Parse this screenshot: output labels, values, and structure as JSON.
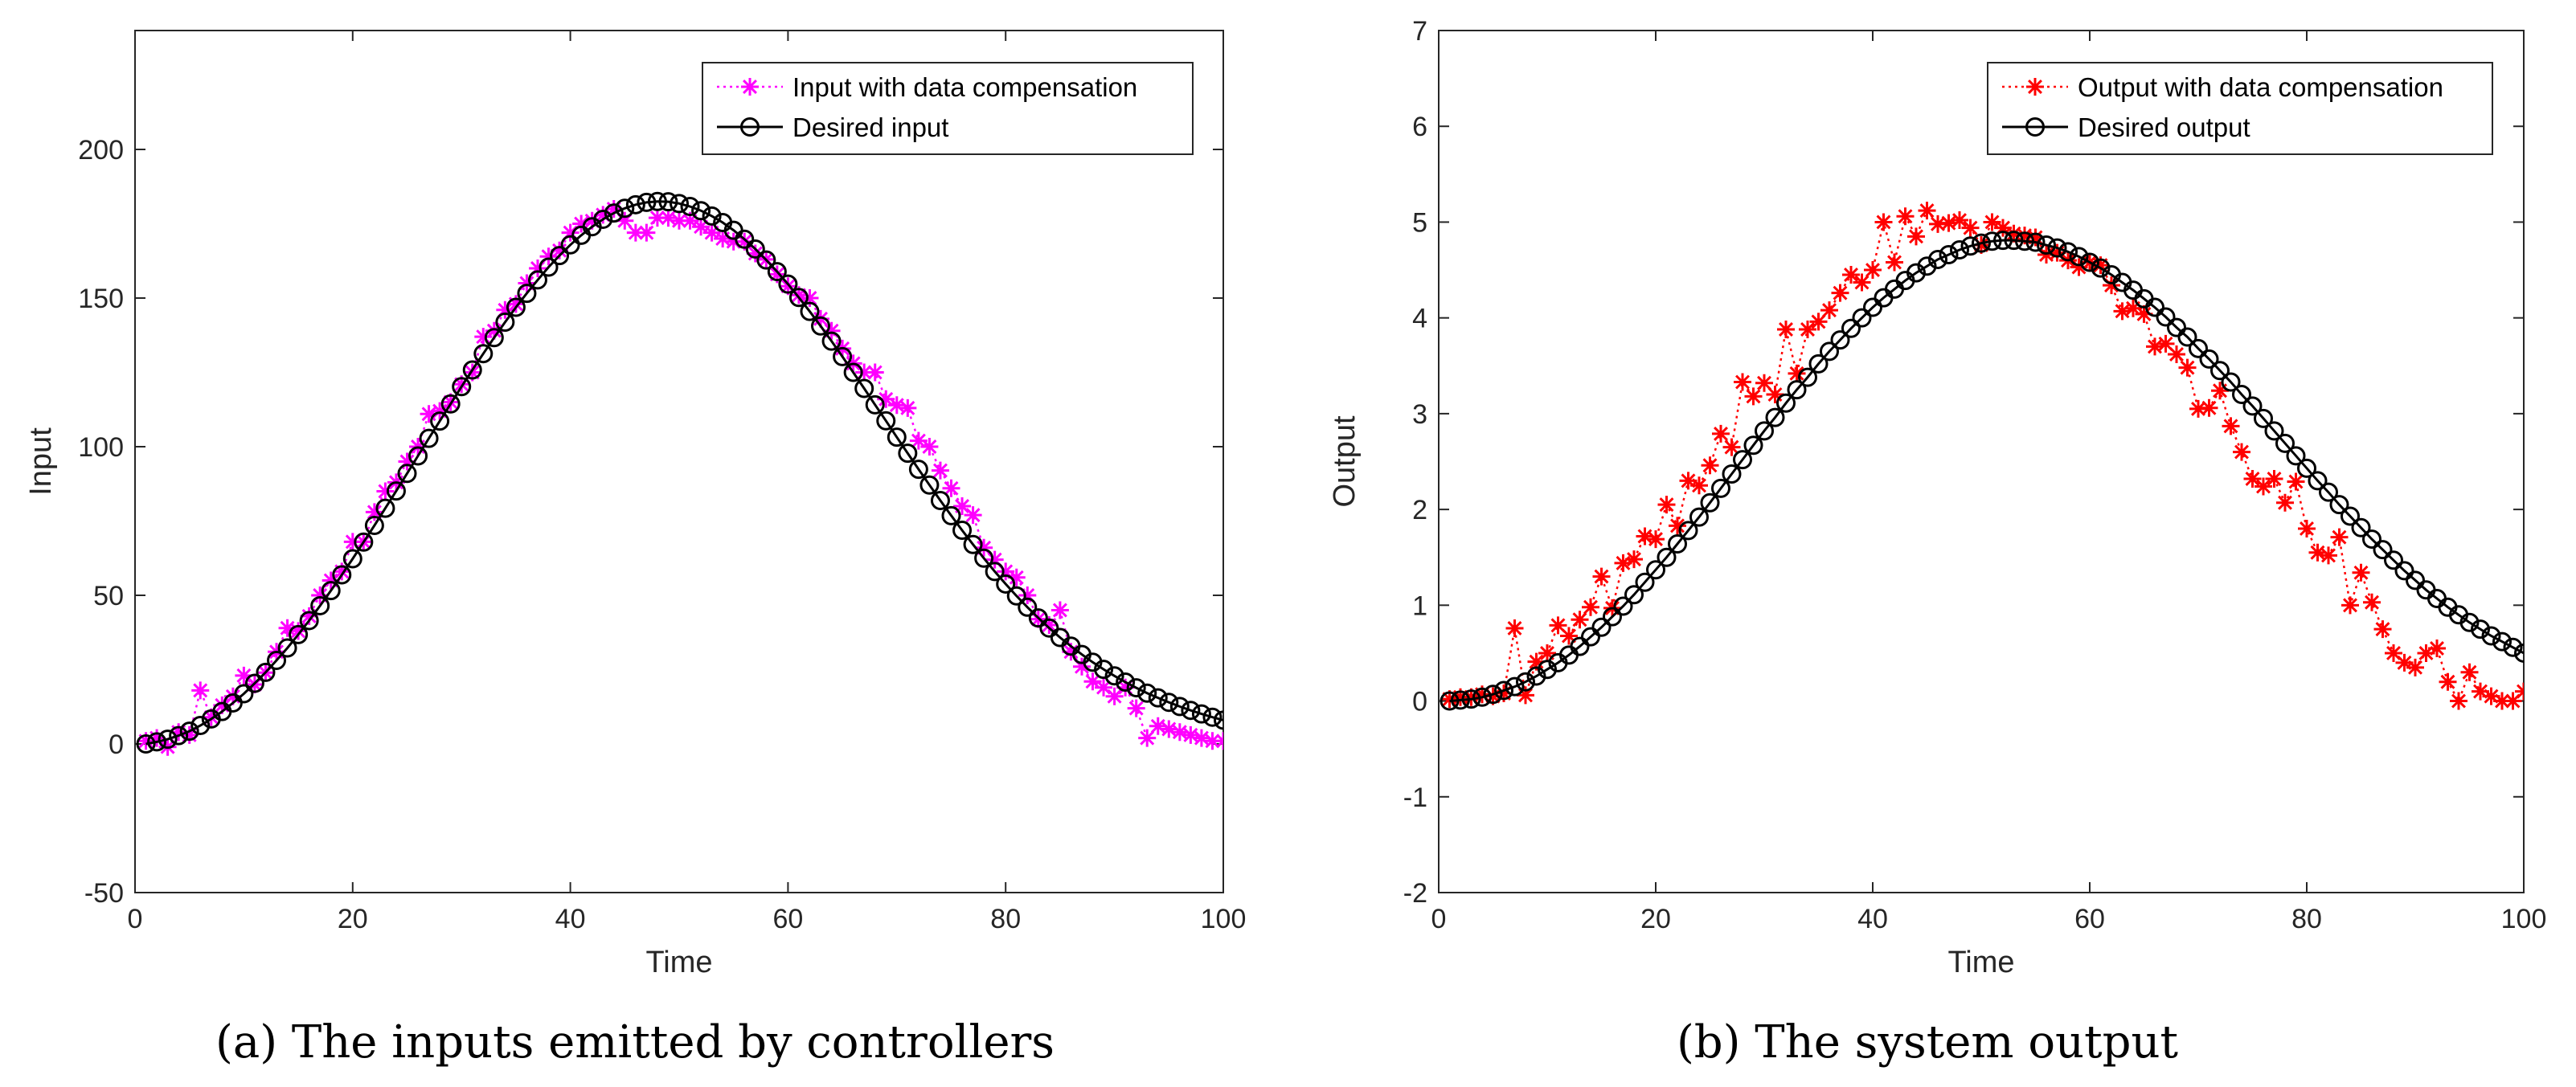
{
  "chart_data": [
    {
      "type": "line",
      "caption": "(a) The inputs emitted by controllers",
      "xlabel": "Time",
      "ylabel": "Input",
      "xlim": [
        0,
        100
      ],
      "ylim": [
        -50,
        240
      ],
      "xticks": [
        0,
        20,
        40,
        60,
        80,
        100
      ],
      "yticks": [
        -50,
        0,
        50,
        100,
        150,
        200
      ],
      "grid": false,
      "legend_position": "top-right",
      "series": [
        {
          "name": "Input with data compensation",
          "color": "#ff00ff",
          "marker": "asterisk",
          "line": "dotted",
          "x": [
            1,
            2,
            3,
            4,
            5,
            6,
            7,
            8,
            9,
            10,
            11,
            12,
            13,
            14,
            15,
            16,
            17,
            18,
            19,
            20,
            21,
            22,
            23,
            24,
            25,
            26,
            27,
            28,
            29,
            30,
            31,
            32,
            33,
            34,
            35,
            36,
            37,
            38,
            39,
            40,
            41,
            42,
            43,
            44,
            45,
            46,
            47,
            48,
            49,
            50,
            51,
            52,
            53,
            54,
            55,
            56,
            57,
            58,
            59,
            60,
            61,
            62,
            63,
            64,
            65,
            66,
            67,
            68,
            69,
            70,
            71,
            72,
            73,
            74,
            75,
            76,
            77,
            78,
            79,
            80,
            81,
            82,
            83,
            84,
            85,
            86,
            87,
            88,
            89,
            90,
            91,
            92,
            93,
            94,
            95,
            96,
            97,
            98,
            99,
            100
          ],
          "values": [
            1,
            2,
            -1,
            4,
            3,
            18,
            9,
            13,
            16,
            23,
            20,
            24,
            31,
            39,
            38,
            43,
            50,
            55,
            58,
            68,
            68,
            78,
            85,
            88,
            95,
            100,
            111,
            112,
            115,
            121,
            125,
            137,
            139,
            146,
            148,
            155,
            160,
            164,
            166,
            172,
            175,
            176,
            178,
            180,
            176,
            172,
            172,
            177,
            177,
            176,
            176,
            174,
            172,
            170,
            169,
            169,
            165,
            163,
            158,
            154,
            151,
            150,
            143,
            139,
            133,
            128,
            125,
            125,
            116,
            114,
            113,
            102,
            100,
            92,
            86,
            80,
            77,
            66,
            62,
            58,
            56,
            50,
            42,
            40,
            45,
            31,
            26,
            21,
            19,
            16,
            19,
            12,
            2,
            6,
            5,
            4,
            3,
            2,
            1,
            1
          ]
        },
        {
          "name": "Desired input",
          "color": "#000000",
          "marker": "circle",
          "line": "solid",
          "x": [
            1,
            2,
            3,
            4,
            5,
            6,
            7,
            8,
            9,
            10,
            11,
            12,
            13,
            14,
            15,
            16,
            17,
            18,
            19,
            20,
            21,
            22,
            23,
            24,
            25,
            26,
            27,
            28,
            29,
            30,
            31,
            32,
            33,
            34,
            35,
            36,
            37,
            38,
            39,
            40,
            41,
            42,
            43,
            44,
            45,
            46,
            47,
            48,
            49,
            50,
            51,
            52,
            53,
            54,
            55,
            56,
            57,
            58,
            59,
            60,
            61,
            62,
            63,
            64,
            65,
            66,
            67,
            68,
            69,
            70,
            71,
            72,
            73,
            74,
            75,
            76,
            77,
            78,
            79,
            80,
            81,
            82,
            83,
            84,
            85,
            86,
            87,
            88,
            89,
            90,
            91,
            92,
            93,
            94,
            95,
            96,
            97,
            98,
            99,
            100
          ],
          "values": [
            0.0,
            0.7,
            1.6,
            2.8,
            4.3,
            6.2,
            8.4,
            10.9,
            13.8,
            16.9,
            20.4,
            24.1,
            28.1,
            32.3,
            36.8,
            41.5,
            46.5,
            51.6,
            56.9,
            62.3,
            67.9,
            73.5,
            79.3,
            85.1,
            91.0,
            96.9,
            102.8,
            108.6,
            114.4,
            120.2,
            125.8,
            131.3,
            136.7,
            141.9,
            146.9,
            151.6,
            156.1,
            160.4,
            164.3,
            167.9,
            171.1,
            174.0,
            176.5,
            178.6,
            180.2,
            181.4,
            182.2,
            182.5,
            182.4,
            181.8,
            180.8,
            179.4,
            177.6,
            175.4,
            172.8,
            169.8,
            166.5,
            162.8,
            158.9,
            154.7,
            150.2,
            145.5,
            140.6,
            135.5,
            130.3,
            125.0,
            119.6,
            114.1,
            108.7,
            103.2,
            97.8,
            92.4,
            87.1,
            81.9,
            76.8,
            71.9,
            67.1,
            62.5,
            58.0,
            53.8,
            49.8,
            46.0,
            42.4,
            39.0,
            35.8,
            32.9,
            30.1,
            27.5,
            25.1,
            22.9,
            20.8,
            18.9,
            17.1,
            15.5,
            14.0,
            12.6,
            11.3,
            10.1,
            9.0,
            8.0
          ]
        }
      ]
    },
    {
      "type": "line",
      "caption": "(b) The system output",
      "xlabel": "Time",
      "ylabel": "Output",
      "xlim": [
        0,
        100
      ],
      "ylim": [
        -2,
        7
      ],
      "xticks": [
        0,
        20,
        40,
        60,
        80,
        100
      ],
      "yticks": [
        -2,
        -1,
        0,
        1,
        2,
        3,
        4,
        5,
        6,
        7
      ],
      "grid": false,
      "legend_position": "top-right",
      "series": [
        {
          "name": "Output with data compensation",
          "color": "#ff0000",
          "marker": "asterisk",
          "line": "dotted",
          "x": [
            1,
            2,
            3,
            4,
            5,
            6,
            7,
            8,
            9,
            10,
            11,
            12,
            13,
            14,
            15,
            16,
            17,
            18,
            19,
            20,
            21,
            22,
            23,
            24,
            25,
            26,
            27,
            28,
            29,
            30,
            31,
            32,
            33,
            34,
            35,
            36,
            37,
            38,
            39,
            40,
            41,
            42,
            43,
            44,
            45,
            46,
            47,
            48,
            49,
            50,
            51,
            52,
            53,
            54,
            55,
            56,
            57,
            58,
            59,
            60,
            61,
            62,
            63,
            64,
            65,
            66,
            67,
            68,
            69,
            70,
            71,
            72,
            73,
            74,
            75,
            76,
            77,
            78,
            79,
            80,
            81,
            82,
            83,
            84,
            85,
            86,
            87,
            88,
            89,
            90,
            91,
            92,
            93,
            94,
            95,
            96,
            97,
            98,
            99,
            100
          ],
          "values": [
            0.02,
            0.04,
            0.04,
            0.07,
            0.05,
            0.08,
            0.76,
            0.06,
            0.41,
            0.5,
            0.79,
            0.68,
            0.85,
            0.98,
            1.3,
            0.97,
            1.44,
            1.48,
            1.72,
            1.69,
            2.05,
            1.83,
            2.3,
            2.25,
            2.46,
            2.79,
            2.65,
            3.33,
            3.18,
            3.32,
            3.2,
            3.88,
            3.42,
            3.88,
            3.96,
            4.08,
            4.26,
            4.45,
            4.37,
            4.5,
            5.0,
            4.58,
            5.06,
            4.85,
            5.12,
            4.98,
            4.99,
            5.02,
            4.94,
            4.76,
            5.0,
            4.94,
            4.88,
            4.86,
            4.84,
            4.66,
            4.68,
            4.6,
            4.53,
            4.58,
            4.55,
            4.34,
            4.07,
            4.1,
            4.04,
            3.7,
            3.73,
            3.62,
            3.48,
            3.05,
            3.06,
            3.24,
            2.87,
            2.6,
            2.32,
            2.24,
            2.32,
            2.07,
            2.29,
            1.8,
            1.55,
            1.52,
            1.71,
            1.0,
            1.34,
            1.03,
            0.75,
            0.5,
            0.4,
            0.35,
            0.5,
            0.55,
            0.2,
            0.0,
            0.3,
            0.1,
            0.05,
            0.0,
            0.0,
            0.1
          ]
        },
        {
          "name": "Desired output",
          "color": "#000000",
          "marker": "circle",
          "line": "solid",
          "x": [
            1,
            2,
            3,
            4,
            5,
            6,
            7,
            8,
            9,
            10,
            11,
            12,
            13,
            14,
            15,
            16,
            17,
            18,
            19,
            20,
            21,
            22,
            23,
            24,
            25,
            26,
            27,
            28,
            29,
            30,
            31,
            32,
            33,
            34,
            35,
            36,
            37,
            38,
            39,
            40,
            41,
            42,
            43,
            44,
            45,
            46,
            47,
            48,
            49,
            50,
            51,
            52,
            53,
            54,
            55,
            56,
            57,
            58,
            59,
            60,
            61,
            62,
            63,
            64,
            65,
            66,
            67,
            68,
            69,
            70,
            71,
            72,
            73,
            74,
            75,
            76,
            77,
            78,
            79,
            80,
            81,
            82,
            83,
            84,
            85,
            86,
            87,
            88,
            89,
            90,
            91,
            92,
            93,
            94,
            95,
            96,
            97,
            98,
            99,
            100
          ],
          "values": [
            0.0,
            0.01,
            0.02,
            0.04,
            0.07,
            0.11,
            0.15,
            0.2,
            0.26,
            0.33,
            0.4,
            0.48,
            0.57,
            0.67,
            0.77,
            0.88,
            0.99,
            1.11,
            1.24,
            1.37,
            1.5,
            1.64,
            1.78,
            1.92,
            2.07,
            2.22,
            2.37,
            2.52,
            2.67,
            2.82,
            2.96,
            3.11,
            3.25,
            3.38,
            3.52,
            3.65,
            3.77,
            3.89,
            4.0,
            4.11,
            4.21,
            4.3,
            4.39,
            4.47,
            4.54,
            4.61,
            4.66,
            4.71,
            4.75,
            4.78,
            4.8,
            4.81,
            4.81,
            4.8,
            4.79,
            4.76,
            4.73,
            4.69,
            4.64,
            4.58,
            4.52,
            4.45,
            4.37,
            4.29,
            4.2,
            4.11,
            4.01,
            3.9,
            3.8,
            3.68,
            3.57,
            3.45,
            3.33,
            3.2,
            3.08,
            2.95,
            2.82,
            2.69,
            2.56,
            2.43,
            2.3,
            2.18,
            2.05,
            1.93,
            1.81,
            1.69,
            1.58,
            1.47,
            1.36,
            1.26,
            1.16,
            1.07,
            0.98,
            0.9,
            0.82,
            0.75,
            0.68,
            0.62,
            0.56,
            0.5
          ]
        }
      ]
    }
  ]
}
